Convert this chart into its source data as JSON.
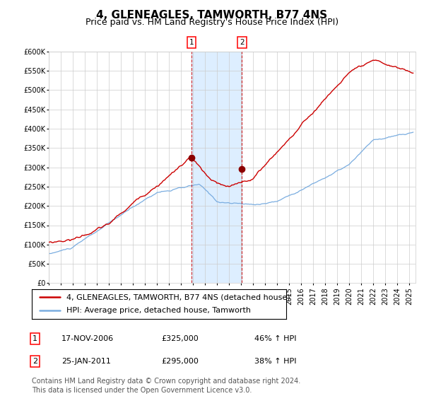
{
  "title": "4, GLENEAGLES, TAMWORTH, B77 4NS",
  "subtitle": "Price paid vs. HM Land Registry's House Price Index (HPI)",
  "hpi_color": "#7aade0",
  "price_color": "#cc0000",
  "marker_color": "#8b0000",
  "bg_color": "#ffffff",
  "grid_color": "#cccccc",
  "shading_color": "#ddeeff",
  "ylim": [
    0,
    600000
  ],
  "yticks": [
    0,
    50000,
    100000,
    150000,
    200000,
    250000,
    300000,
    350000,
    400000,
    450000,
    500000,
    550000,
    600000
  ],
  "ytick_labels": [
    "£0",
    "£50K",
    "£100K",
    "£150K",
    "£200K",
    "£250K",
    "£300K",
    "£350K",
    "£400K",
    "£450K",
    "£500K",
    "£550K",
    "£600K"
  ],
  "sale1_date": 2006.88,
  "sale1_price": 325000,
  "sale2_date": 2011.07,
  "sale2_price": 295000,
  "legend_line1": "4, GLENEAGLES, TAMWORTH, B77 4NS (detached house)",
  "legend_line2": "HPI: Average price, detached house, Tamworth",
  "annotation1_date": "17-NOV-2006",
  "annotation1_price": "£325,000",
  "annotation1_pct": "46% ↑ HPI",
  "annotation2_date": "25-JAN-2011",
  "annotation2_price": "£295,000",
  "annotation2_pct": "38% ↑ HPI",
  "footer": "Contains HM Land Registry data © Crown copyright and database right 2024.\nThis data is licensed under the Open Government Licence v3.0.",
  "title_fontsize": 11,
  "subtitle_fontsize": 9,
  "tick_fontsize": 7,
  "legend_fontsize": 8,
  "annotation_fontsize": 8,
  "footer_fontsize": 7
}
